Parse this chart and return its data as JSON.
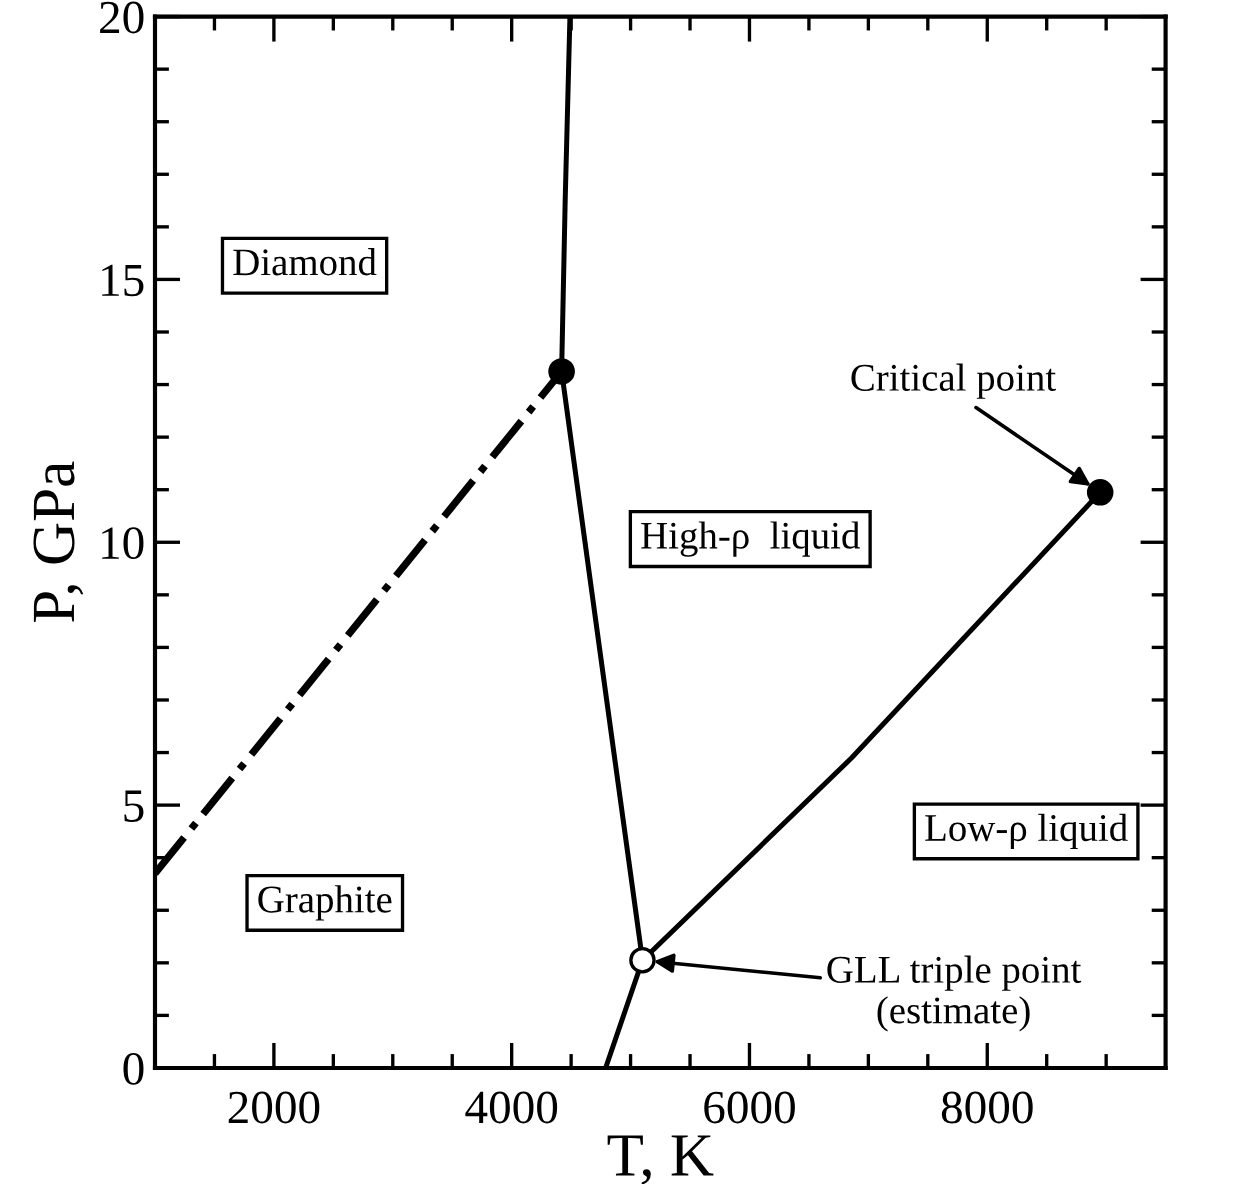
{
  "chart_data": {
    "type": "line",
    "xlabel": "T, K",
    "ylabel": "P, GPa",
    "xlim": [
      1000,
      9500
    ],
    "ylim": [
      0,
      20
    ],
    "xticks": [
      {
        "value": 1500,
        "label": null
      },
      2000,
      {
        "value": 2500,
        "label": null
      },
      {
        "value": 3000,
        "label": null
      },
      {
        "value": 3500,
        "label": null
      },
      4000,
      {
        "value": 4500,
        "label": null
      },
      {
        "value": 5000,
        "label": null
      },
      {
        "value": 5500,
        "label": null
      },
      6000,
      {
        "value": 6500,
        "label": null
      },
      {
        "value": 7000,
        "label": null
      },
      {
        "value": 7500,
        "label": null
      },
      8000,
      {
        "value": 8500,
        "label": null
      },
      {
        "value": 9000,
        "label": null
      }
    ],
    "yticks": [
      0,
      {
        "value": 1,
        "label": null
      },
      {
        "value": 2,
        "label": null
      },
      {
        "value": 3,
        "label": null
      },
      {
        "value": 4,
        "label": null
      },
      5,
      {
        "value": 6,
        "label": null
      },
      {
        "value": 7,
        "label": null
      },
      {
        "value": 8,
        "label": null
      },
      {
        "value": 9,
        "label": null
      },
      10,
      {
        "value": 11,
        "label": null
      },
      {
        "value": 12,
        "label": null
      },
      {
        "value": 13,
        "label": null
      },
      {
        "value": 14,
        "label": null
      },
      15,
      {
        "value": 16,
        "label": null
      },
      {
        "value": 17,
        "label": null
      },
      {
        "value": 18,
        "label": null
      },
      {
        "value": 19,
        "label": null
      },
      20
    ],
    "grid": false,
    "series": [
      {
        "line_style": "dashdot",
        "color": "#000000",
        "x": [
          1000,
          4420
        ],
        "values": [
          3.7,
          13.25
        ]
      },
      {
        "line_style": "solid",
        "color": "#000000",
        "x": [
          4420,
          4450,
          4490
        ],
        "values": [
          13.25,
          16.5,
          20
        ]
      },
      {
        "line_style": "solid",
        "color": "#000000",
        "x": [
          4420,
          4750,
          5100
        ],
        "values": [
          13.25,
          7.8,
          2.05
        ]
      },
      {
        "line_style": "solid",
        "color": "#000000",
        "x": [
          4790,
          5100
        ],
        "values": [
          0,
          2.05
        ]
      },
      {
        "line_style": "solid",
        "color": "#000000",
        "x": [
          5100,
          6860,
          8950
        ],
        "values": [
          2.05,
          5.9,
          10.95
        ]
      },
      {
        "type": "scatter",
        "marker": "circle",
        "color": "#000000",
        "x": [
          4420,
          8950
        ],
        "values": [
          13.25,
          10.95
        ]
      },
      {
        "type": "scatter",
        "marker": "circle",
        "color": "#ffffff",
        "x": [
          5100
        ],
        "values": [
          2.05
        ]
      }
    ],
    "annotations": [
      "Diamond",
      "High-ρ  liquid",
      "Low-ρ liquid",
      "Graphite",
      {
        "text": "Critical point",
        "x": 8950,
        "y": 10.95
      },
      {
        "text": "GLL triple point\n(estimate)",
        "x": 5100,
        "y": 2.05
      }
    ]
  }
}
